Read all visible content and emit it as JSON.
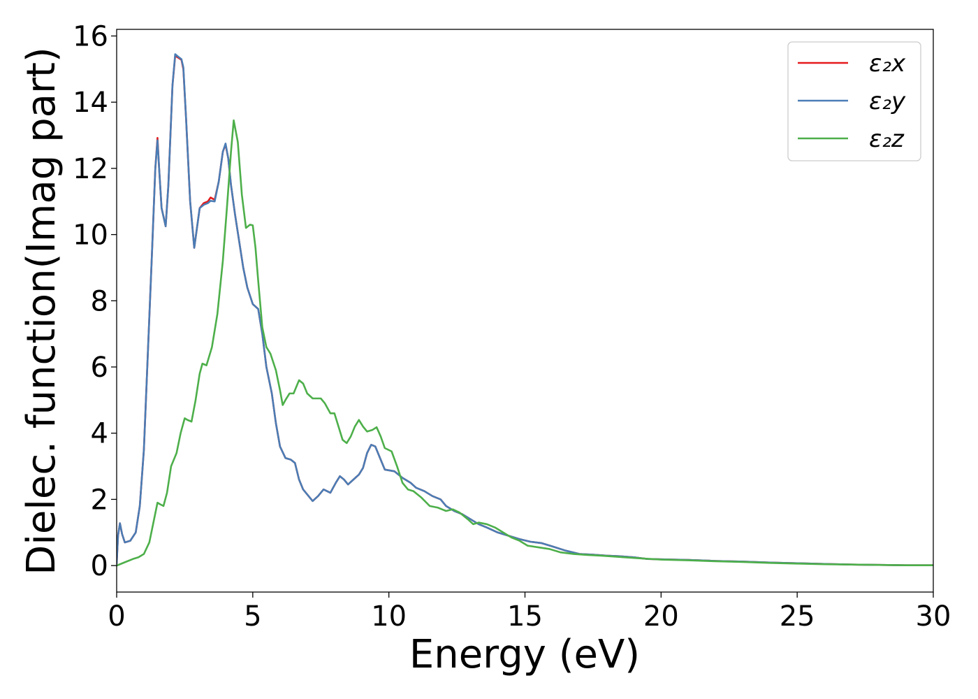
{
  "chart_data": {
    "type": "line",
    "title": "",
    "xlabel": "Energy (eV)",
    "ylabel": "Dielec. function(Imag part)",
    "xlim": [
      0,
      30
    ],
    "ylim": [
      -0.8,
      16.2
    ],
    "xticks": [
      0,
      5,
      10,
      15,
      20,
      25,
      30
    ],
    "yticks": [
      0,
      2,
      4,
      6,
      8,
      10,
      12,
      14,
      16
    ],
    "xtick_labels": [
      "0",
      "5",
      "10",
      "15",
      "20",
      "25",
      "30"
    ],
    "ytick_labels": [
      "0",
      "2",
      "4",
      "6",
      "8",
      "10",
      "12",
      "14",
      "16"
    ],
    "grid": false,
    "legend_position": "top-right",
    "series": [
      {
        "name": "ε₂x",
        "color": "#e41a1c",
        "points": [
          [
            0,
            0.05
          ],
          [
            0.05,
            0.9
          ],
          [
            0.12,
            1.28
          ],
          [
            0.2,
            0.95
          ],
          [
            0.3,
            0.7
          ],
          [
            0.5,
            0.75
          ],
          [
            0.7,
            1.0
          ],
          [
            0.85,
            1.8
          ],
          [
            1.0,
            3.5
          ],
          [
            1.15,
            6.5
          ],
          [
            1.3,
            9.5
          ],
          [
            1.42,
            12.0
          ],
          [
            1.5,
            12.92
          ],
          [
            1.56,
            12.0
          ],
          [
            1.65,
            10.8
          ],
          [
            1.8,
            10.25
          ],
          [
            1.9,
            11.5
          ],
          [
            2.05,
            14.5
          ],
          [
            2.15,
            15.4
          ],
          [
            2.25,
            15.35
          ],
          [
            2.38,
            15.28
          ],
          [
            2.45,
            15.0
          ],
          [
            2.55,
            13.5
          ],
          [
            2.7,
            11.0
          ],
          [
            2.85,
            9.6
          ],
          [
            2.95,
            10.2
          ],
          [
            3.05,
            10.8
          ],
          [
            3.2,
            10.95
          ],
          [
            3.35,
            11.0
          ],
          [
            3.45,
            11.12
          ],
          [
            3.6,
            11.05
          ],
          [
            3.75,
            11.6
          ],
          [
            3.9,
            12.5
          ],
          [
            4.0,
            12.72
          ],
          [
            4.1,
            12.3
          ],
          [
            4.2,
            11.5
          ],
          [
            4.35,
            10.6
          ],
          [
            4.5,
            9.8
          ],
          [
            4.65,
            9.0
          ],
          [
            4.8,
            8.4
          ],
          [
            5.0,
            7.9
          ],
          [
            5.2,
            7.75
          ],
          [
            5.35,
            7.0
          ],
          [
            5.5,
            6.0
          ],
          [
            5.7,
            5.2
          ],
          [
            5.85,
            4.3
          ],
          [
            6.0,
            3.6
          ],
          [
            6.2,
            3.25
          ],
          [
            6.4,
            3.2
          ],
          [
            6.55,
            3.1
          ],
          [
            6.7,
            2.6
          ],
          [
            6.85,
            2.3
          ],
          [
            7.0,
            2.15
          ],
          [
            7.2,
            1.95
          ],
          [
            7.4,
            2.1
          ],
          [
            7.6,
            2.3
          ],
          [
            7.85,
            2.2
          ],
          [
            8.05,
            2.5
          ],
          [
            8.2,
            2.7
          ],
          [
            8.35,
            2.6
          ],
          [
            8.5,
            2.45
          ],
          [
            8.7,
            2.6
          ],
          [
            8.9,
            2.75
          ],
          [
            9.05,
            2.95
          ],
          [
            9.2,
            3.4
          ],
          [
            9.35,
            3.65
          ],
          [
            9.5,
            3.6
          ],
          [
            9.7,
            3.2
          ],
          [
            9.85,
            2.9
          ],
          [
            10.2,
            2.85
          ],
          [
            10.5,
            2.65
          ],
          [
            10.8,
            2.5
          ],
          [
            11.0,
            2.35
          ],
          [
            11.3,
            2.25
          ],
          [
            11.6,
            2.1
          ],
          [
            11.9,
            2.0
          ],
          [
            12.1,
            1.8
          ],
          [
            12.4,
            1.65
          ],
          [
            12.7,
            1.55
          ],
          [
            13.0,
            1.4
          ],
          [
            13.3,
            1.25
          ],
          [
            13.6,
            1.15
          ],
          [
            14.0,
            1.0
          ],
          [
            14.4,
            0.9
          ],
          [
            14.8,
            0.8
          ],
          [
            15.2,
            0.72
          ],
          [
            15.6,
            0.68
          ],
          [
            16.0,
            0.58
          ],
          [
            16.5,
            0.45
          ],
          [
            17.0,
            0.35
          ],
          [
            17.5,
            0.33
          ],
          [
            18.0,
            0.3
          ],
          [
            18.5,
            0.28
          ],
          [
            19.0,
            0.25
          ],
          [
            19.5,
            0.2
          ],
          [
            20.0,
            0.19
          ],
          [
            21.0,
            0.17
          ],
          [
            22.0,
            0.14
          ],
          [
            23.0,
            0.12
          ],
          [
            24.0,
            0.09
          ],
          [
            25.0,
            0.07
          ],
          [
            26.0,
            0.05
          ],
          [
            27.0,
            0.03
          ],
          [
            28.0,
            0.02
          ],
          [
            29.0,
            0.01
          ],
          [
            30.0,
            0.01
          ]
        ]
      },
      {
        "name": "ε₂y",
        "color": "#4a7db5",
        "points": [
          [
            0,
            0.05
          ],
          [
            0.05,
            0.9
          ],
          [
            0.12,
            1.28
          ],
          [
            0.2,
            0.95
          ],
          [
            0.3,
            0.7
          ],
          [
            0.5,
            0.75
          ],
          [
            0.7,
            1.0
          ],
          [
            0.85,
            1.8
          ],
          [
            1.0,
            3.5
          ],
          [
            1.15,
            6.5
          ],
          [
            1.3,
            9.5
          ],
          [
            1.42,
            12.0
          ],
          [
            1.5,
            12.85
          ],
          [
            1.56,
            12.0
          ],
          [
            1.65,
            10.8
          ],
          [
            1.8,
            10.25
          ],
          [
            1.9,
            11.5
          ],
          [
            2.05,
            14.5
          ],
          [
            2.15,
            15.45
          ],
          [
            2.25,
            15.38
          ],
          [
            2.38,
            15.3
          ],
          [
            2.45,
            15.05
          ],
          [
            2.55,
            13.5
          ],
          [
            2.7,
            11.0
          ],
          [
            2.85,
            9.6
          ],
          [
            2.95,
            10.2
          ],
          [
            3.05,
            10.8
          ],
          [
            3.2,
            10.9
          ],
          [
            3.35,
            10.95
          ],
          [
            3.45,
            11.02
          ],
          [
            3.6,
            11.0
          ],
          [
            3.75,
            11.6
          ],
          [
            3.9,
            12.5
          ],
          [
            4.0,
            12.75
          ],
          [
            4.1,
            12.3
          ],
          [
            4.2,
            11.5
          ],
          [
            4.35,
            10.6
          ],
          [
            4.5,
            9.8
          ],
          [
            4.65,
            9.0
          ],
          [
            4.8,
            8.4
          ],
          [
            5.0,
            7.9
          ],
          [
            5.2,
            7.75
          ],
          [
            5.35,
            7.0
          ],
          [
            5.5,
            6.0
          ],
          [
            5.7,
            5.2
          ],
          [
            5.85,
            4.3
          ],
          [
            6.0,
            3.6
          ],
          [
            6.2,
            3.25
          ],
          [
            6.4,
            3.2
          ],
          [
            6.55,
            3.1
          ],
          [
            6.7,
            2.6
          ],
          [
            6.85,
            2.3
          ],
          [
            7.0,
            2.15
          ],
          [
            7.2,
            1.95
          ],
          [
            7.4,
            2.1
          ],
          [
            7.6,
            2.3
          ],
          [
            7.85,
            2.2
          ],
          [
            8.05,
            2.5
          ],
          [
            8.2,
            2.7
          ],
          [
            8.35,
            2.6
          ],
          [
            8.5,
            2.45
          ],
          [
            8.7,
            2.6
          ],
          [
            8.9,
            2.75
          ],
          [
            9.05,
            2.95
          ],
          [
            9.2,
            3.4
          ],
          [
            9.35,
            3.65
          ],
          [
            9.5,
            3.6
          ],
          [
            9.7,
            3.2
          ],
          [
            9.85,
            2.9
          ],
          [
            10.2,
            2.85
          ],
          [
            10.5,
            2.65
          ],
          [
            10.8,
            2.5
          ],
          [
            11.0,
            2.35
          ],
          [
            11.3,
            2.25
          ],
          [
            11.6,
            2.1
          ],
          [
            11.9,
            2.0
          ],
          [
            12.1,
            1.8
          ],
          [
            12.4,
            1.65
          ],
          [
            12.7,
            1.55
          ],
          [
            13.0,
            1.4
          ],
          [
            13.3,
            1.25
          ],
          [
            13.6,
            1.15
          ],
          [
            14.0,
            1.0
          ],
          [
            14.4,
            0.9
          ],
          [
            14.8,
            0.8
          ],
          [
            15.2,
            0.72
          ],
          [
            15.6,
            0.68
          ],
          [
            16.0,
            0.58
          ],
          [
            16.5,
            0.45
          ],
          [
            17.0,
            0.35
          ],
          [
            17.5,
            0.33
          ],
          [
            18.0,
            0.3
          ],
          [
            18.5,
            0.28
          ],
          [
            19.0,
            0.25
          ],
          [
            19.5,
            0.2
          ],
          [
            20.0,
            0.19
          ],
          [
            21.0,
            0.17
          ],
          [
            22.0,
            0.14
          ],
          [
            23.0,
            0.12
          ],
          [
            24.0,
            0.09
          ],
          [
            25.0,
            0.07
          ],
          [
            26.0,
            0.05
          ],
          [
            27.0,
            0.03
          ],
          [
            28.0,
            0.02
          ],
          [
            29.0,
            0.01
          ],
          [
            30.0,
            0.01
          ]
        ]
      },
      {
        "name": "ε₂z",
        "color": "#4daf4a",
        "points": [
          [
            0,
            0.0
          ],
          [
            0.3,
            0.1
          ],
          [
            0.6,
            0.2
          ],
          [
            0.8,
            0.25
          ],
          [
            1.0,
            0.35
          ],
          [
            1.2,
            0.7
          ],
          [
            1.35,
            1.3
          ],
          [
            1.5,
            1.9
          ],
          [
            1.6,
            1.85
          ],
          [
            1.72,
            1.8
          ],
          [
            1.85,
            2.2
          ],
          [
            2.0,
            3.0
          ],
          [
            2.2,
            3.4
          ],
          [
            2.35,
            4.0
          ],
          [
            2.5,
            4.45
          ],
          [
            2.6,
            4.4
          ],
          [
            2.75,
            4.35
          ],
          [
            2.9,
            5.0
          ],
          [
            3.05,
            5.8
          ],
          [
            3.15,
            6.1
          ],
          [
            3.3,
            6.05
          ],
          [
            3.5,
            6.6
          ],
          [
            3.7,
            7.6
          ],
          [
            3.9,
            9.2
          ],
          [
            4.05,
            10.8
          ],
          [
            4.2,
            12.5
          ],
          [
            4.3,
            13.45
          ],
          [
            4.45,
            12.8
          ],
          [
            4.6,
            11.2
          ],
          [
            4.75,
            10.2
          ],
          [
            4.9,
            10.3
          ],
          [
            5.0,
            10.28
          ],
          [
            5.1,
            9.6
          ],
          [
            5.2,
            8.6
          ],
          [
            5.35,
            7.2
          ],
          [
            5.5,
            6.6
          ],
          [
            5.65,
            6.4
          ],
          [
            5.85,
            5.9
          ],
          [
            6.0,
            5.3
          ],
          [
            6.1,
            4.85
          ],
          [
            6.2,
            5.0
          ],
          [
            6.35,
            5.2
          ],
          [
            6.5,
            5.2
          ],
          [
            6.7,
            5.6
          ],
          [
            6.85,
            5.5
          ],
          [
            7.0,
            5.2
          ],
          [
            7.2,
            5.05
          ],
          [
            7.5,
            5.05
          ],
          [
            7.65,
            4.9
          ],
          [
            7.85,
            4.6
          ],
          [
            8.0,
            4.6
          ],
          [
            8.15,
            4.2
          ],
          [
            8.3,
            3.8
          ],
          [
            8.45,
            3.7
          ],
          [
            8.6,
            3.9
          ],
          [
            8.75,
            4.2
          ],
          [
            8.9,
            4.4
          ],
          [
            9.05,
            4.2
          ],
          [
            9.2,
            4.05
          ],
          [
            9.4,
            4.1
          ],
          [
            9.55,
            4.18
          ],
          [
            9.7,
            3.9
          ],
          [
            9.85,
            3.55
          ],
          [
            10.1,
            3.45
          ],
          [
            10.3,
            3.0
          ],
          [
            10.5,
            2.5
          ],
          [
            10.7,
            2.3
          ],
          [
            10.9,
            2.25
          ],
          [
            11.2,
            2.05
          ],
          [
            11.5,
            1.8
          ],
          [
            11.8,
            1.75
          ],
          [
            12.1,
            1.65
          ],
          [
            12.35,
            1.7
          ],
          [
            12.6,
            1.6
          ],
          [
            12.9,
            1.4
          ],
          [
            13.1,
            1.25
          ],
          [
            13.3,
            1.3
          ],
          [
            13.6,
            1.25
          ],
          [
            13.9,
            1.15
          ],
          [
            14.2,
            1.0
          ],
          [
            14.5,
            0.85
          ],
          [
            14.8,
            0.75
          ],
          [
            15.1,
            0.6
          ],
          [
            15.5,
            0.55
          ],
          [
            15.9,
            0.5
          ],
          [
            16.3,
            0.4
          ],
          [
            16.8,
            0.35
          ],
          [
            17.3,
            0.32
          ],
          [
            17.8,
            0.3
          ],
          [
            18.5,
            0.26
          ],
          [
            19.2,
            0.22
          ],
          [
            20.0,
            0.18
          ],
          [
            21.0,
            0.16
          ],
          [
            22.0,
            0.13
          ],
          [
            23.0,
            0.11
          ],
          [
            24.0,
            0.08
          ],
          [
            25.0,
            0.06
          ],
          [
            26.0,
            0.04
          ],
          [
            27.0,
            0.03
          ],
          [
            28.0,
            0.02
          ],
          [
            29.0,
            0.01
          ],
          [
            30.0,
            0.01
          ]
        ]
      }
    ]
  }
}
